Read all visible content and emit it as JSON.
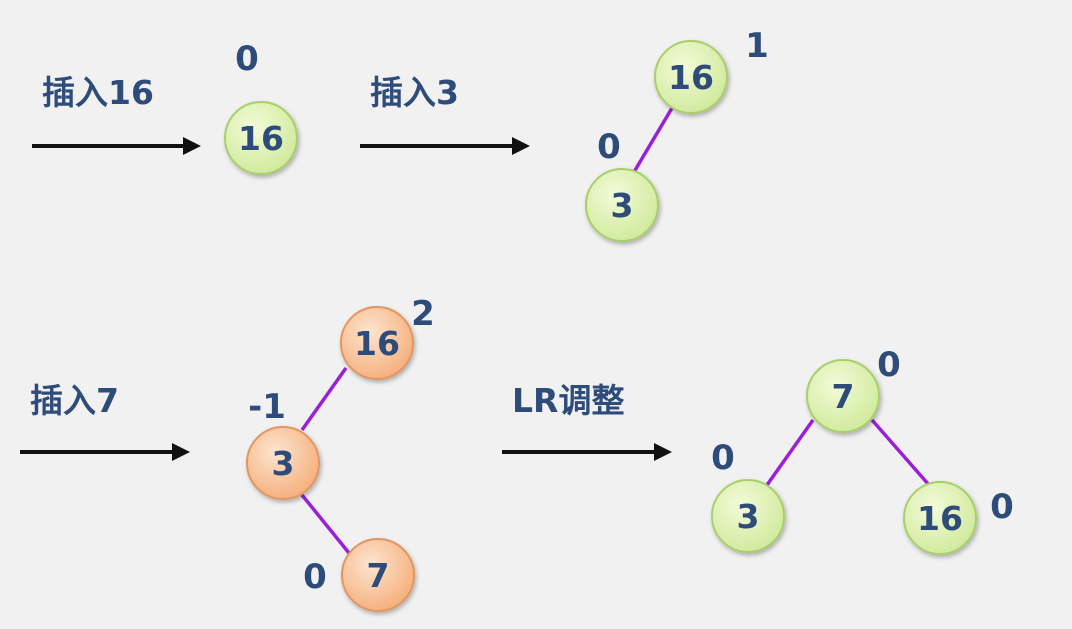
{
  "colors": {
    "background": "#f1f1f1",
    "text": "#2e4c7a",
    "edge": "#9b1fd6",
    "arrow": "#111111",
    "green_node_fill_inner": "#f3fbd9",
    "green_node_fill_outer": "#cfe99a",
    "green_node_stroke": "#a9cf6a",
    "orange_node_fill_inner": "#fde5cf",
    "orange_node_fill_outer": "#f5ad7a",
    "orange_node_stroke": "#e39660"
  },
  "steps": [
    {
      "label": "插入16",
      "nodes": [
        {
          "key": "16",
          "balance_factor": "0",
          "color": "green"
        }
      ]
    },
    {
      "label": "插入3",
      "nodes": [
        {
          "key": "16",
          "balance_factor": "1",
          "color": "green"
        },
        {
          "key": "3",
          "balance_factor": "0",
          "color": "green"
        }
      ]
    },
    {
      "label": "插入7",
      "nodes": [
        {
          "key": "16",
          "balance_factor": "2",
          "color": "orange"
        },
        {
          "key": "3",
          "balance_factor": "-1",
          "color": "orange"
        },
        {
          "key": "7",
          "balance_factor": "0",
          "color": "orange"
        }
      ]
    },
    {
      "label": "LR调整",
      "nodes": [
        {
          "key": "7",
          "balance_factor": "0",
          "color": "green"
        },
        {
          "key": "3",
          "balance_factor": "0",
          "color": "green"
        },
        {
          "key": "16",
          "balance_factor": "0",
          "color": "green"
        }
      ]
    }
  ]
}
